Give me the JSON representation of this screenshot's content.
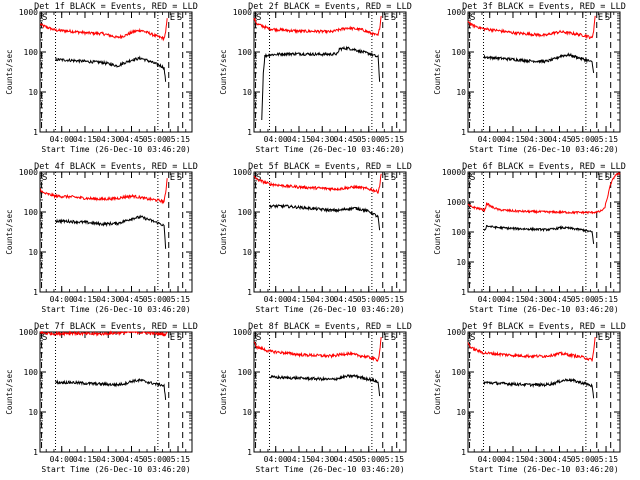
{
  "chart_data": {
    "type": "line",
    "x_time_axis": {
      "tick_labels": [
        "04:00",
        "04:15",
        "04:30",
        "04:45",
        "05:00",
        "05:15"
      ],
      "tick_minutes_from_start": [
        14,
        29,
        44,
        59,
        74,
        89
      ],
      "range_minutes_from_start": [
        0,
        98
      ],
      "xlabel": "Start Time (26-Dec-10 03:46:20)"
    },
    "ylabel": "Counts/sec",
    "y_scale": "log",
    "dotted_markers_minutes": [
      10,
      76
    ],
    "dashed_markers_minutes": [
      1,
      83,
      92
    ],
    "marker_labels": [
      "E",
      "S"
    ],
    "series_colors": {
      "events": "#000000",
      "lld": "#ff0000"
    },
    "panels": [
      {
        "title": "Det 1f BLACK = Events, RED = LLD",
        "ylim": [
          1,
          1000
        ],
        "ytick_labels": [
          "1",
          "10",
          "100",
          "1000"
        ],
        "lld": {
          "t": [
            0,
            2,
            10,
            20,
            30,
            40,
            45,
            50,
            55,
            60,
            65,
            70,
            75,
            78,
            80,
            81,
            82
          ],
          "v": [
            500,
            450,
            350,
            330,
            300,
            290,
            260,
            230,
            260,
            320,
            350,
            300,
            250,
            230,
            220,
            300,
            700
          ]
        },
        "events": {
          "t": [
            10,
            20,
            30,
            40,
            45,
            50,
            55,
            60,
            65,
            70,
            75,
            78,
            80,
            81
          ],
          "v": [
            65,
            62,
            58,
            55,
            50,
            45,
            55,
            65,
            70,
            60,
            50,
            45,
            40,
            18
          ]
        }
      },
      {
        "title": "Det 2f BLACK = Events, RED = LLD",
        "ylim": [
          1,
          1000
        ],
        "ytick_labels": [
          "1",
          "10",
          "100",
          "1000"
        ],
        "lld": {
          "t": [
            0,
            2,
            10,
            20,
            30,
            40,
            50,
            55,
            60,
            65,
            70,
            75,
            78,
            80,
            81,
            82
          ],
          "v": [
            700,
            500,
            380,
            350,
            330,
            330,
            320,
            360,
            400,
            380,
            360,
            300,
            270,
            260,
            400,
            800
          ]
        },
        "events": {
          "t": [
            5,
            6,
            7,
            10,
            20,
            30,
            40,
            50,
            54,
            55,
            60,
            65,
            70,
            75,
            78,
            80,
            81
          ],
          "v": [
            2,
            30,
            80,
            85,
            90,
            90,
            88,
            88,
            90,
            120,
            125,
            115,
            100,
            90,
            80,
            75,
            18
          ]
        }
      },
      {
        "title": "Det 3f BLACK = Events, RED = LLD",
        "ylim": [
          1,
          1000
        ],
        "ytick_labels": [
          "1",
          "10",
          "100",
          "1000"
        ],
        "lld": {
          "t": [
            0,
            2,
            10,
            20,
            30,
            40,
            50,
            55,
            60,
            65,
            70,
            75,
            78,
            80,
            81,
            82
          ],
          "v": [
            600,
            480,
            380,
            340,
            300,
            280,
            260,
            300,
            320,
            300,
            280,
            260,
            240,
            220,
            350,
            800
          ]
        },
        "events": {
          "t": [
            10,
            20,
            30,
            40,
            50,
            55,
            60,
            65,
            70,
            75,
            78,
            80,
            81
          ],
          "v": [
            75,
            70,
            65,
            60,
            58,
            65,
            80,
            85,
            75,
            65,
            60,
            55,
            30
          ]
        }
      },
      {
        "title": "Det 4f BLACK = Events, RED = LLD",
        "ylim": [
          1,
          1000
        ],
        "ytick_labels": [
          "1",
          "10",
          "100",
          "1000"
        ],
        "lld": {
          "t": [
            0,
            2,
            10,
            20,
            30,
            40,
            50,
            55,
            60,
            65,
            70,
            75,
            78,
            80,
            81,
            82
          ],
          "v": [
            380,
            300,
            250,
            240,
            220,
            210,
            220,
            240,
            250,
            230,
            210,
            200,
            190,
            180,
            300,
            700
          ]
        },
        "events": {
          "t": [
            10,
            20,
            30,
            40,
            50,
            55,
            60,
            65,
            70,
            75,
            78,
            80,
            81
          ],
          "v": [
            60,
            58,
            55,
            50,
            52,
            60,
            70,
            75,
            65,
            55,
            50,
            45,
            12
          ]
        }
      },
      {
        "title": "Det 5f BLACK = Events, RED = LLD",
        "ylim": [
          1,
          1000
        ],
        "ytick_labels": [
          "1",
          "10",
          "100",
          "1000"
        ],
        "lld": {
          "t": [
            0,
            2,
            10,
            20,
            30,
            40,
            50,
            55,
            60,
            65,
            70,
            75,
            78,
            80,
            81,
            82
          ],
          "v": [
            800,
            650,
            500,
            450,
            420,
            400,
            380,
            380,
            400,
            420,
            400,
            370,
            340,
            320,
            450,
            900
          ]
        },
        "events": {
          "t": [
            10,
            20,
            30,
            40,
            50,
            55,
            60,
            65,
            70,
            75,
            78,
            80,
            81
          ],
          "v": [
            140,
            140,
            130,
            120,
            110,
            110,
            120,
            125,
            115,
            100,
            85,
            75,
            35
          ]
        }
      },
      {
        "title": "Det 6f BLACK = Events, RED = LLD",
        "ylim": [
          1,
          10000
        ],
        "ytick_labels": [
          "1",
          "10",
          "100",
          "1000",
          "10000"
        ],
        "lld": {
          "t": [
            0,
            2,
            10,
            11,
            12,
            15,
            20,
            30,
            40,
            50,
            55,
            60,
            65,
            70,
            75,
            80,
            82,
            85,
            88,
            90,
            92,
            95,
            98
          ],
          "v": [
            800,
            700,
            550,
            550,
            900,
            700,
            550,
            500,
            480,
            470,
            460,
            460,
            450,
            450,
            450,
            450,
            460,
            480,
            600,
            1500,
            4000,
            8000,
            9000
          ]
        },
        "events": {
          "t": [
            10,
            11,
            12,
            15,
            20,
            30,
            40,
            50,
            55,
            60,
            65,
            70,
            75,
            78,
            80,
            81
          ],
          "v": [
            120,
            120,
            160,
            150,
            140,
            130,
            125,
            120,
            125,
            140,
            135,
            125,
            115,
            105,
            100,
            40
          ]
        }
      },
      {
        "title": "Det 7f BLACK = Events, RED = LLD",
        "ylim": [
          1,
          1000
        ],
        "ytick_labels": [
          "1",
          "10",
          "100",
          "1000"
        ],
        "lld": {
          "t": [
            0,
            2,
            10,
            20,
            30,
            40,
            50,
            60,
            70,
            75,
            78,
            80,
            81,
            82
          ],
          "v": [
            1000,
            950,
            900,
            950,
            900,
            900,
            950,
            1000,
            950,
            900,
            900,
            850,
            900,
            1000
          ]
        },
        "events": {
          "t": [
            10,
            20,
            30,
            40,
            50,
            55,
            60,
            65,
            70,
            75,
            78,
            80,
            81
          ],
          "v": [
            55,
            55,
            52,
            50,
            48,
            52,
            60,
            62,
            55,
            50,
            48,
            45,
            20
          ]
        }
      },
      {
        "title": "Det 8f BLACK = Events, RED = LLD",
        "ylim": [
          1,
          1000
        ],
        "ytick_labels": [
          "1",
          "10",
          "100",
          "1000"
        ],
        "lld": {
          "t": [
            0,
            2,
            10,
            20,
            30,
            40,
            50,
            55,
            60,
            65,
            70,
            75,
            78,
            80,
            81,
            82
          ],
          "v": [
            550,
            420,
            330,
            300,
            270,
            260,
            250,
            270,
            290,
            270,
            250,
            230,
            210,
            200,
            320,
            750
          ]
        },
        "events": {
          "t": [
            10,
            20,
            30,
            40,
            50,
            55,
            60,
            65,
            70,
            75,
            78,
            80,
            81
          ],
          "v": [
            75,
            72,
            70,
            68,
            65,
            70,
            78,
            80,
            72,
            65,
            60,
            55,
            25
          ]
        }
      },
      {
        "title": "Det 9f BLACK = Events, RED = LLD",
        "ylim": [
          1,
          1000
        ],
        "ytick_labels": [
          "1",
          "10",
          "100",
          "1000"
        ],
        "lld": {
          "t": [
            0,
            2,
            10,
            20,
            30,
            40,
            50,
            55,
            60,
            65,
            70,
            75,
            78,
            80,
            81,
            82
          ],
          "v": [
            550,
            400,
            300,
            280,
            260,
            250,
            250,
            270,
            290,
            270,
            250,
            230,
            210,
            200,
            320,
            750
          ]
        },
        "events": {
          "t": [
            10,
            20,
            30,
            40,
            50,
            55,
            60,
            65,
            70,
            75,
            78,
            80,
            81
          ],
          "v": [
            55,
            52,
            50,
            48,
            48,
            52,
            60,
            65,
            58,
            52,
            48,
            45,
            22
          ]
        }
      }
    ]
  }
}
